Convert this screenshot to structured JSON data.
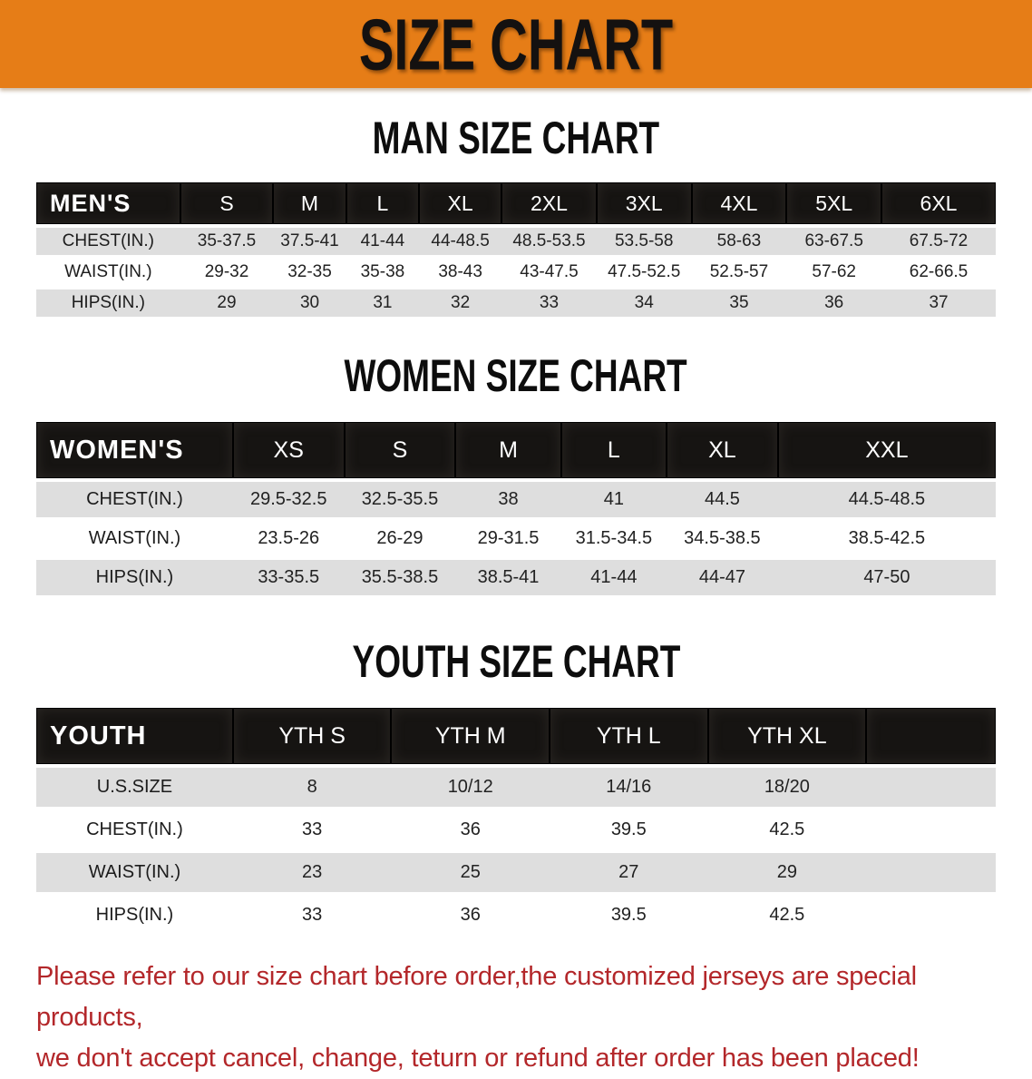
{
  "banner": {
    "title": "SIZE CHART",
    "bg_color": "#e67d17",
    "text_color": "#141110"
  },
  "colors": {
    "table_header_bg": "#161412",
    "table_row_gray": "#dedede",
    "disclaimer_red": "#b3272a"
  },
  "sections": [
    {
      "title": "MAN SIZE CHART",
      "header_label": "MEN'S",
      "columns": [
        "S",
        "M",
        "L",
        "XL",
        "2XL",
        "3XL",
        "4XL",
        "5XL",
        "6XL"
      ],
      "rows": [
        {
          "label": "CHEST(IN.)",
          "values": [
            "35-37.5",
            "37.5-41",
            "41-44",
            "44-48.5",
            "48.5-53.5",
            "53.5-58",
            "58-63",
            "63-67.5",
            "67.5-72"
          ]
        },
        {
          "label": "WAIST(IN.)",
          "values": [
            "29-32",
            "32-35",
            "35-38",
            "38-43",
            "43-47.5",
            "47.5-52.5",
            "52.5-57",
            "57-62",
            "62-66.5"
          ]
        },
        {
          "label": "HIPS(IN.)",
          "values": [
            "29",
            "30",
            "31",
            "32",
            "33",
            "34",
            "35",
            "36",
            "37"
          ]
        }
      ]
    },
    {
      "title": "WOMEN SIZE CHART",
      "header_label": "WOMEN'S",
      "columns": [
        "XS",
        "S",
        "M",
        "L",
        "XL",
        "XXL"
      ],
      "rows": [
        {
          "label": "CHEST(IN.)",
          "values": [
            "29.5-32.5",
            "32.5-35.5",
            "38",
            "41",
            "44.5",
            "44.5-48.5"
          ]
        },
        {
          "label": "WAIST(IN.)",
          "values": [
            "23.5-26",
            "26-29",
            "29-31.5",
            "31.5-34.5",
            "34.5-38.5",
            "38.5-42.5"
          ]
        },
        {
          "label": "HIPS(IN.)",
          "values": [
            "33-35.5",
            "35.5-38.5",
            "38.5-41",
            "41-44",
            "44-47",
            "47-50"
          ]
        }
      ]
    },
    {
      "title": "YOUTH SIZE CHART",
      "header_label": "YOUTH",
      "columns": [
        "YTH S",
        "YTH M",
        "YTH L",
        "YTH XL"
      ],
      "rows": [
        {
          "label": "U.S.SIZE",
          "values": [
            "8",
            "10/12",
            "14/16",
            "18/20"
          ]
        },
        {
          "label": "CHEST(IN.)",
          "values": [
            "33",
            "36",
            "39.5",
            "42.5"
          ]
        },
        {
          "label": "WAIST(IN.)",
          "values": [
            "23",
            "25",
            "27",
            "29"
          ]
        },
        {
          "label": "HIPS(IN.)",
          "values": [
            "33",
            "36",
            "39.5",
            "42.5"
          ]
        }
      ]
    }
  ],
  "disclaimer": {
    "line1": "Please refer to our size chart before order,the customized jerseys are special products,",
    "line2": "we don't accept cancel, change, teturn or refund after order has been placed!"
  }
}
